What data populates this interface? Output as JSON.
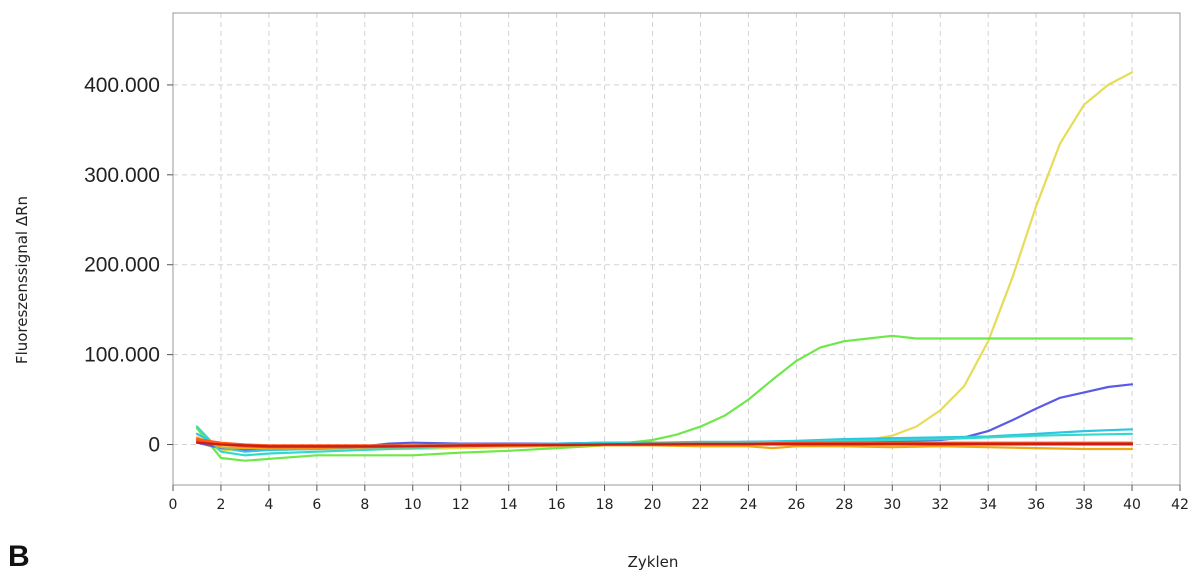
{
  "panel_label": "B",
  "chart_data": {
    "type": "line",
    "title": "",
    "xlabel": "Zyklen",
    "ylabel": "Fluoreszenssignal ΔRn",
    "xlim": [
      0,
      42
    ],
    "ylim": [
      -45000,
      480000
    ],
    "x_ticks": [
      0,
      2,
      4,
      6,
      8,
      10,
      12,
      14,
      16,
      18,
      20,
      22,
      24,
      26,
      28,
      30,
      32,
      34,
      36,
      38,
      40,
      42
    ],
    "x_tick_labels": [
      "0",
      "2",
      "4",
      "6",
      "8",
      "10",
      "12",
      "14",
      "16",
      "18",
      "20",
      "22",
      "24",
      "26",
      "28",
      "30",
      "32",
      "34",
      "36",
      "38",
      "40",
      "42"
    ],
    "y_ticks": [
      0,
      100000,
      200000,
      300000,
      400000
    ],
    "y_tick_labels": [
      "0",
      "100.000",
      "200.000",
      "300.000",
      "400.000"
    ],
    "grid": true,
    "series": [
      {
        "color": "#e6dc58",
        "x": [
          1,
          2,
          3,
          4,
          6,
          8,
          10,
          12,
          14,
          16,
          18,
          20,
          22,
          24,
          26,
          28,
          29,
          30,
          31,
          32,
          33,
          34,
          35,
          36,
          37,
          38,
          39,
          40
        ],
        "y": [
          3000,
          -6000,
          -7000,
          -6000,
          -5000,
          -5000,
          -5000,
          -4000,
          -3000,
          -2000,
          -1000,
          0,
          1000,
          2000,
          3000,
          4000,
          5000,
          10000,
          20000,
          38000,
          65000,
          115000,
          185000,
          265000,
          335000,
          378000,
          400000,
          414000
        ]
      },
      {
        "color": "#6ee84a",
        "x": [
          1,
          2,
          3,
          4,
          6,
          8,
          10,
          12,
          14,
          16,
          18,
          19,
          20,
          21,
          22,
          23,
          24,
          25,
          26,
          27,
          28,
          29,
          30,
          31,
          32,
          34,
          36,
          38,
          40
        ],
        "y": [
          18000,
          -15000,
          -18000,
          -16000,
          -12000,
          -12000,
          -12000,
          -9000,
          -7000,
          -4000,
          -1000,
          2000,
          5000,
          11000,
          20000,
          32000,
          50000,
          72000,
          93000,
          108000,
          115000,
          118000,
          121000,
          118000,
          118000,
          118000,
          118000,
          118000,
          118000
        ]
      },
      {
        "color": "#5a5ae6",
        "x": [
          1,
          2,
          3,
          4,
          6,
          8,
          9,
          10,
          12,
          14,
          16,
          18,
          20,
          22,
          24,
          26,
          28,
          30,
          32,
          33,
          34,
          35,
          36,
          37,
          38,
          39,
          40
        ],
        "y": [
          2000,
          -4000,
          -6000,
          -5000,
          -4000,
          -2000,
          1000,
          2000,
          1000,
          1000,
          1000,
          2000,
          2000,
          2000,
          3000,
          3000,
          4000,
          4000,
          5000,
          8000,
          15000,
          27000,
          40000,
          52000,
          58000,
          64000,
          67000
        ]
      },
      {
        "color": "#2ec4e6",
        "x": [
          1,
          2,
          3,
          4,
          6,
          8,
          10,
          12,
          14,
          16,
          18,
          20,
          22,
          24,
          26,
          28,
          30,
          32,
          34,
          36,
          38,
          40
        ],
        "y": [
          12000,
          -3000,
          -8000,
          -6000,
          -5000,
          -3000,
          -1000,
          0,
          0,
          1000,
          2000,
          2000,
          3000,
          3000,
          4000,
          6000,
          7000,
          8000,
          9000,
          12000,
          15000,
          17000
        ]
      },
      {
        "color": "#36d8c8",
        "x": [
          1,
          2,
          3,
          4,
          6,
          8,
          10,
          12,
          14,
          16,
          18,
          20,
          22,
          24,
          26,
          28,
          30,
          32,
          34,
          36,
          38,
          40
        ],
        "y": [
          20000,
          -8000,
          -12000,
          -10000,
          -8000,
          -6000,
          -4000,
          -2000,
          -1000,
          0,
          1000,
          1500,
          2000,
          2500,
          3000,
          4000,
          5000,
          6000,
          8000,
          10000,
          11000,
          12000
        ]
      },
      {
        "color": "#f0a818",
        "x": [
          1,
          2,
          3,
          4,
          6,
          8,
          10,
          12,
          14,
          16,
          18,
          20,
          22,
          24,
          25,
          26,
          28,
          30,
          32,
          34,
          36,
          38,
          40
        ],
        "y": [
          8000,
          -3000,
          -4000,
          -4000,
          -4000,
          -3000,
          -3000,
          -2000,
          -2000,
          -1000,
          -1000,
          -1000,
          -2000,
          -2000,
          -4000,
          -2000,
          -2000,
          -3000,
          -2000,
          -3000,
          -4000,
          -5000,
          -5000
        ]
      },
      {
        "color": "#e84a2a",
        "x": [
          1,
          2,
          3,
          4,
          6,
          8,
          10,
          12,
          14,
          16,
          18,
          20,
          22,
          24,
          26,
          28,
          30,
          32,
          34,
          36,
          38,
          40
        ],
        "y": [
          4000,
          0,
          -2000,
          -3000,
          -3000,
          -3000,
          -2000,
          -2000,
          -1000,
          -1000,
          0,
          1000,
          1000,
          1000,
          2000,
          2000,
          2000,
          2000,
          2000,
          2000,
          2000,
          2000
        ]
      },
      {
        "color": "#ff5a18",
        "x": [
          1,
          2,
          3,
          4,
          6,
          8,
          10,
          12,
          14,
          16,
          18,
          20,
          22,
          24,
          26,
          28,
          30,
          32,
          34,
          36,
          38,
          40
        ],
        "y": [
          6000,
          2000,
          0,
          -1000,
          -1000,
          -1000,
          -1000,
          -1000,
          0,
          0,
          0,
          0,
          0,
          0,
          0,
          0,
          0,
          0,
          0,
          0,
          0,
          0
        ]
      },
      {
        "color": "#c81e14",
        "x": [
          1,
          2,
          3,
          4,
          6,
          8,
          10,
          12,
          14,
          16,
          18,
          20,
          22,
          24,
          26,
          28,
          30,
          32,
          34,
          36,
          38,
          40
        ],
        "y": [
          2000,
          0,
          -1000,
          -2000,
          -2000,
          -2000,
          -2000,
          -1000,
          -1000,
          -500,
          0,
          0,
          500,
          500,
          500,
          500,
          500,
          500,
          500,
          500,
          500,
          500
        ]
      }
    ]
  }
}
